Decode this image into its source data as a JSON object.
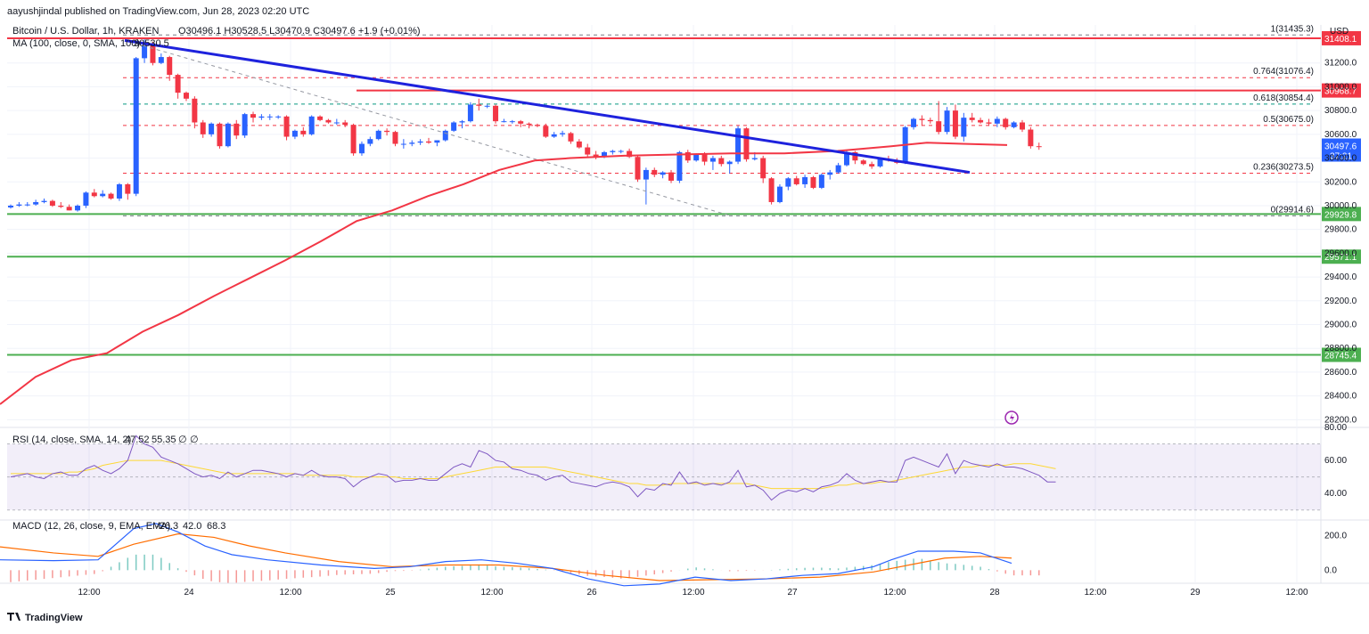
{
  "header": {
    "published": "aayushjindal published on TradingView.com, Jun 28, 2023 02:20 UTC",
    "symbol": "Bitcoin / U.S. Dollar, 1h, KRAKEN",
    "ohlc": "O30496.1 H30528.5 L30470.9 C30497.6 +1.9 (+0.01%)",
    "ma_label": "MA (100, close, 0, SMA, 100)",
    "ma_value": "30530.5",
    "rsi_label": "RSI (14, close, SMA, 14, 2)",
    "rsi_values": [
      "47.52",
      "55.35",
      "∅",
      "∅"
    ],
    "macd_label": "MACD (12, 26, close, 9, EMA, EMA)",
    "macd_values": [
      "-26.3",
      "42.0",
      "68.3"
    ],
    "currency": "USD",
    "brand": "TradingView",
    "countdown": "37:21"
  },
  "colors": {
    "up": "#2962ff",
    "down": "#f23645",
    "ma": "#f23645",
    "trend": "#1e22dd",
    "resistance": "#f23645",
    "support": "#4caf50",
    "fib": "#f23645",
    "fib618": "#089981",
    "rsi": "#7e57c2",
    "rsi_sma": "#fdd835",
    "macd": "#2962ff",
    "signal": "#ff6d00",
    "hist_up": "#26a69a",
    "hist_down": "#ef5350"
  },
  "chart_data": {
    "type": "candlestick",
    "x_tick_labels": [
      "12:00",
      "24",
      "12:00",
      "25",
      "12:00",
      "26",
      "12:00",
      "27",
      "12:00",
      "28",
      "12:00",
      "29",
      "12:00"
    ],
    "price_axis": {
      "ticks": [
        "31200.0",
        "31000.0",
        "30800.0",
        "30600.0",
        "30400.0",
        "30200.0",
        "30000.0",
        "29800.0",
        "29600.0",
        "29400.0",
        "29200.0",
        "29000.0",
        "28800.0",
        "28600.0",
        "28400.0",
        "28200.0"
      ],
      "range": [
        28150,
        31520
      ]
    },
    "candles": [
      [
        29985,
        30010,
        29975,
        30000
      ],
      [
        30000,
        30030,
        29990,
        30010
      ],
      [
        30010,
        30030,
        29995,
        30010
      ],
      [
        30010,
        30050,
        30000,
        30030
      ],
      [
        30030,
        30060,
        30020,
        30040
      ],
      [
        30040,
        30050,
        29990,
        30000
      ],
      [
        30000,
        30030,
        29980,
        29990
      ],
      [
        29990,
        30010,
        29960,
        29960
      ],
      [
        29960,
        30010,
        29950,
        30000
      ],
      [
        30000,
        30120,
        29980,
        30110
      ],
      [
        30110,
        30140,
        30070,
        30080
      ],
      [
        30080,
        30130,
        30070,
        30100
      ],
      [
        30100,
        30110,
        30050,
        30060
      ],
      [
        30060,
        30190,
        30040,
        30180
      ],
      [
        30180,
        30190,
        30050,
        30100
      ],
      [
        30100,
        31250,
        30080,
        31240
      ],
      [
        31240,
        31400,
        31200,
        31350
      ],
      [
        31350,
        31380,
        31180,
        31200
      ],
      [
        31200,
        31280,
        31190,
        31250
      ],
      [
        31250,
        31260,
        31050,
        31100
      ],
      [
        31100,
        31110,
        30900,
        30950
      ],
      [
        30950,
        30960,
        30880,
        30900
      ],
      [
        30900,
        30920,
        30650,
        30700
      ],
      [
        30700,
        30720,
        30570,
        30600
      ],
      [
        30600,
        30700,
        30580,
        30690
      ],
      [
        30690,
        30700,
        30480,
        30500
      ],
      [
        30500,
        30700,
        30490,
        30690
      ],
      [
        30690,
        30720,
        30560,
        30590
      ],
      [
        30590,
        30780,
        30570,
        30770
      ],
      [
        30770,
        30790,
        30700,
        30740
      ],
      [
        30740,
        30770,
        30720,
        30750
      ],
      [
        30750,
        30770,
        30720,
        30750
      ],
      [
        30750,
        30760,
        30730,
        30750
      ],
      [
        30750,
        30760,
        30550,
        30580
      ],
      [
        30580,
        30640,
        30560,
        30630
      ],
      [
        30630,
        30660,
        30580,
        30600
      ],
      [
        30600,
        30760,
        30590,
        30750
      ],
      [
        30750,
        30760,
        30710,
        30720
      ],
      [
        30720,
        30730,
        30690,
        30700
      ],
      [
        30700,
        30730,
        30680,
        30700
      ],
      [
        30700,
        30720,
        30660,
        30680
      ],
      [
        30680,
        30690,
        30420,
        30440
      ],
      [
        30440,
        30540,
        30420,
        30520
      ],
      [
        30520,
        30580,
        30500,
        30560
      ],
      [
        30560,
        30640,
        30550,
        30630
      ],
      [
        30630,
        30650,
        30590,
        30620
      ],
      [
        30620,
        30630,
        30500,
        30520
      ],
      [
        30520,
        30560,
        30480,
        30520
      ],
      [
        30520,
        30550,
        30500,
        30530
      ],
      [
        30530,
        30560,
        30510,
        30540
      ],
      [
        30540,
        30570,
        30520,
        30530
      ],
      [
        30530,
        30550,
        30500,
        30550
      ],
      [
        30550,
        30640,
        30540,
        30630
      ],
      [
        30630,
        30710,
        30620,
        30700
      ],
      [
        30700,
        30720,
        30650,
        30710
      ],
      [
        30710,
        30870,
        30700,
        30850
      ],
      [
        30850,
        30900,
        30800,
        30840
      ],
      [
        30840,
        30850,
        30820,
        30840
      ],
      [
        30840,
        30850,
        30690,
        30710
      ],
      [
        30710,
        30730,
        30700,
        30710
      ],
      [
        30710,
        30720,
        30690,
        30710
      ],
      [
        30710,
        30720,
        30660,
        30690
      ],
      [
        30690,
        30700,
        30650,
        30680
      ],
      [
        30680,
        30690,
        30660,
        30670
      ],
      [
        30670,
        30690,
        30570,
        30580
      ],
      [
        30580,
        30620,
        30570,
        30600
      ],
      [
        30600,
        30630,
        30580,
        30610
      ],
      [
        30610,
        30620,
        30520,
        30540
      ],
      [
        30540,
        30560,
        30480,
        30490
      ],
      [
        30490,
        30520,
        30410,
        30430
      ],
      [
        30430,
        30460,
        30390,
        30410
      ],
      [
        30410,
        30460,
        30400,
        30450
      ],
      [
        30450,
        30470,
        30430,
        30460
      ],
      [
        30460,
        30470,
        30440,
        30460
      ],
      [
        30460,
        30480,
        30400,
        30410
      ],
      [
        30410,
        30420,
        30200,
        30220
      ],
      [
        30220,
        30320,
        30010,
        30300
      ],
      [
        30300,
        30320,
        30240,
        30260
      ],
      [
        30260,
        30290,
        30230,
        30280
      ],
      [
        30280,
        30300,
        30190,
        30210
      ],
      [
        30210,
        30460,
        30190,
        30450
      ],
      [
        30450,
        30470,
        30360,
        30380
      ],
      [
        30380,
        30440,
        30370,
        30430
      ],
      [
        30430,
        30450,
        30340,
        30370
      ],
      [
        30370,
        30420,
        30300,
        30400
      ],
      [
        30400,
        30420,
        30330,
        30350
      ],
      [
        30350,
        30380,
        30270,
        30370
      ],
      [
        30370,
        30670,
        30350,
        30650
      ],
      [
        30650,
        30660,
        30370,
        30390
      ],
      [
        30390,
        30450,
        30380,
        30400
      ],
      [
        30400,
        30420,
        30190,
        30230
      ],
      [
        30230,
        30240,
        30010,
        30030
      ],
      [
        30030,
        30180,
        30020,
        30160
      ],
      [
        30160,
        30240,
        30130,
        30230
      ],
      [
        30230,
        30250,
        30170,
        30180
      ],
      [
        30180,
        30260,
        30150,
        30240
      ],
      [
        30240,
        30250,
        30140,
        30150
      ],
      [
        30150,
        30270,
        30140,
        30260
      ],
      [
        30260,
        30300,
        30220,
        30280
      ],
      [
        30280,
        30360,
        30270,
        30340
      ],
      [
        30340,
        30460,
        30330,
        30450
      ],
      [
        30450,
        30460,
        30350,
        30380
      ],
      [
        30380,
        30390,
        30340,
        30350
      ],
      [
        30350,
        30370,
        30310,
        30330
      ],
      [
        30330,
        30400,
        30320,
        30390
      ],
      [
        30390,
        30420,
        30370,
        30380
      ],
      [
        30380,
        30400,
        30350,
        30360
      ],
      [
        30360,
        30670,
        30350,
        30660
      ],
      [
        30660,
        30740,
        30640,
        30730
      ],
      [
        30730,
        30760,
        30670,
        30720
      ],
      [
        30720,
        30740,
        30690,
        30710
      ],
      [
        30710,
        30880,
        30600,
        30620
      ],
      [
        30620,
        30830,
        30600,
        30800
      ],
      [
        30800,
        30850,
        30560,
        30580
      ],
      [
        30580,
        30780,
        30540,
        30740
      ],
      [
        30740,
        30780,
        30700,
        30720
      ],
      [
        30720,
        30740,
        30690,
        30700
      ],
      [
        30700,
        30730,
        30670,
        30690
      ],
      [
        30690,
        30750,
        30660,
        30730
      ],
      [
        30730,
        30740,
        30640,
        30660
      ],
      [
        30660,
        30710,
        30650,
        30700
      ],
      [
        30700,
        30720,
        30620,
        30640
      ],
      [
        30640,
        30660,
        30480,
        30500
      ],
      [
        30500,
        30530,
        30470,
        30498
      ]
    ],
    "ma": [
      [
        0,
        28330
      ],
      [
        40,
        28560
      ],
      [
        80,
        28700
      ],
      [
        120,
        28760
      ],
      [
        160,
        28940
      ],
      [
        200,
        29080
      ],
      [
        240,
        29240
      ],
      [
        280,
        29390
      ],
      [
        320,
        29540
      ],
      [
        360,
        29700
      ],
      [
        400,
        29870
      ],
      [
        440,
        29960
      ],
      [
        480,
        30080
      ],
      [
        520,
        30180
      ],
      [
        560,
        30300
      ],
      [
        600,
        30380
      ],
      [
        640,
        30400
      ],
      [
        700,
        30420
      ],
      [
        760,
        30430
      ],
      [
        820,
        30440
      ],
      [
        880,
        30440
      ],
      [
        940,
        30460
      ],
      [
        1000,
        30500
      ],
      [
        1040,
        30530
      ],
      [
        1080,
        30520
      ],
      [
        1130,
        30510
      ]
    ],
    "trendline": {
      "from": [
        140,
        31390
      ],
      "to": [
        1088,
        30280
      ]
    },
    "dashed_guide": {
      "from": [
        145,
        31380
      ],
      "to": [
        820,
        29915
      ]
    },
    "horizontal_levels": [
      {
        "label": "31408.1",
        "price": 31408.1,
        "color": "#f23645",
        "x_from": 8
      },
      {
        "label": "30968.7",
        "price": 30968.7,
        "color": "#f23645",
        "x_from": 400
      },
      {
        "label": "29929.8",
        "price": 29929.8,
        "color": "#4caf50",
        "x_from": 8
      },
      {
        "label": "29571.1",
        "price": 29571.1,
        "color": "#4caf50",
        "x_from": 8
      },
      {
        "label": "28745.4",
        "price": 28745.4,
        "color": "#4caf50",
        "x_from": 8
      }
    ],
    "fib_levels": [
      {
        "label": "1(31435.3)",
        "price": 31435.3
      },
      {
        "label": "0.764(31076.4)",
        "price": 31076.4
      },
      {
        "label": "0.618(30854.4)",
        "price": 30854.4
      },
      {
        "label": "0.5(30675.0)",
        "price": 30675.0
      },
      {
        "label": "0.236(30273.5)",
        "price": 30273.5
      },
      {
        "label": "0(29914.6)",
        "price": 29914.6
      }
    ],
    "last_price": {
      "label": "30497.6",
      "price": 30497.6
    },
    "rsi": {
      "range": [
        25,
        80
      ],
      "ticks": [
        "80.00",
        "60.00",
        "40.00"
      ],
      "band": [
        30,
        70
      ],
      "values": [
        50,
        51,
        52,
        50,
        49,
        52,
        53,
        51,
        51,
        55,
        57,
        54,
        52,
        55,
        60,
        75,
        70,
        68,
        62,
        60,
        58,
        55,
        52,
        50,
        51,
        49,
        53,
        50,
        52,
        54,
        54,
        53,
        52,
        50,
        52,
        51,
        54,
        51,
        50,
        50,
        49,
        44,
        48,
        50,
        52,
        51,
        47,
        48,
        48,
        49,
        48,
        48,
        52,
        56,
        58,
        56,
        66,
        64,
        60,
        59,
        55,
        54,
        52,
        51,
        48,
        50,
        51,
        47,
        46,
        45,
        44,
        46,
        47,
        46,
        44,
        38,
        43,
        42,
        46,
        45,
        53,
        46,
        47,
        45,
        46,
        45,
        47,
        54,
        44,
        45,
        42,
        36,
        40,
        42,
        41,
        43,
        41,
        44,
        45,
        47,
        52,
        48,
        46,
        47,
        48,
        47,
        47,
        60,
        62,
        60,
        58,
        56,
        64,
        52,
        60,
        58,
        57,
        56,
        58,
        56,
        56,
        55,
        53,
        51,
        47,
        47
      ],
      "sma": [
        52,
        52,
        52,
        52,
        52,
        52,
        52,
        53,
        53,
        54,
        55,
        57,
        58,
        59,
        60,
        60,
        60,
        60,
        60,
        59,
        58,
        57,
        56,
        55,
        54,
        53,
        52,
        52,
        52,
        52,
        52,
        52,
        52,
        52,
        52,
        51,
        51,
        51,
        51,
        51,
        51,
        50,
        50,
        50,
        50,
        50,
        50,
        49,
        49,
        49,
        49,
        49,
        50,
        51,
        52,
        53,
        54,
        55,
        56,
        56,
        56,
        56,
        56,
        56,
        56,
        55,
        54,
        53,
        52,
        51,
        50,
        49,
        48,
        47,
        46,
        46,
        45,
        45,
        45,
        46,
        46,
        46,
        46,
        46,
        46,
        46,
        46,
        46,
        46,
        45,
        44,
        43,
        43,
        43,
        43,
        43,
        43,
        43,
        44,
        45,
        45,
        46,
        46,
        46,
        47,
        47,
        48,
        49,
        50,
        51,
        52,
        53,
        54,
        55,
        56,
        56,
        57,
        57,
        57,
        57,
        58,
        58,
        58,
        57,
        56,
        55
      ]
    },
    "macd": {
      "range": [
        -60,
        290
      ],
      "ticks": [
        "200.0",
        "0.0"
      ],
      "macd": [
        [
          0,
          60
        ],
        [
          60,
          55
        ],
        [
          110,
          60
        ],
        [
          130,
          150
        ],
        [
          150,
          240
        ],
        [
          175,
          270
        ],
        [
          200,
          220
        ],
        [
          230,
          140
        ],
        [
          260,
          90
        ],
        [
          300,
          60
        ],
        [
          360,
          30
        ],
        [
          420,
          10
        ],
        [
          460,
          20
        ],
        [
          500,
          50
        ],
        [
          540,
          60
        ],
        [
          580,
          40
        ],
        [
          620,
          10
        ],
        [
          660,
          -50
        ],
        [
          700,
          -90
        ],
        [
          740,
          -80
        ],
        [
          780,
          -40
        ],
        [
          820,
          -60
        ],
        [
          860,
          -50
        ],
        [
          900,
          -30
        ],
        [
          940,
          -20
        ],
        [
          980,
          20
        ],
        [
          1000,
          60
        ],
        [
          1030,
          110
        ],
        [
          1070,
          110
        ],
        [
          1100,
          100
        ],
        [
          1135,
          40
        ]
      ],
      "signal": [
        [
          0,
          135
        ],
        [
          60,
          100
        ],
        [
          110,
          80
        ],
        [
          150,
          150
        ],
        [
          200,
          210
        ],
        [
          240,
          190
        ],
        [
          280,
          140
        ],
        [
          320,
          100
        ],
        [
          380,
          50
        ],
        [
          440,
          20
        ],
        [
          500,
          30
        ],
        [
          560,
          30
        ],
        [
          620,
          10
        ],
        [
          680,
          -30
        ],
        [
          740,
          -60
        ],
        [
          800,
          -55
        ],
        [
          860,
          -50
        ],
        [
          920,
          -40
        ],
        [
          980,
          -10
        ],
        [
          1020,
          30
        ],
        [
          1060,
          70
        ],
        [
          1100,
          80
        ],
        [
          1135,
          70
        ]
      ]
    }
  }
}
